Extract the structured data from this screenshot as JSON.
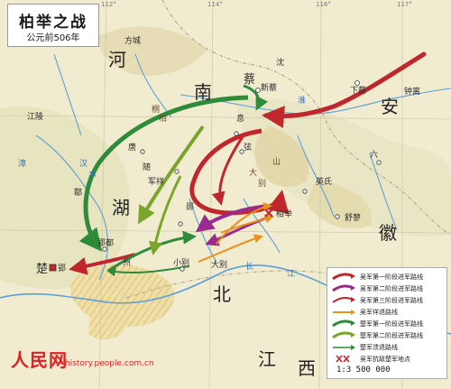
{
  "title": {
    "main": "柏举之战",
    "sub": "公元前506年"
  },
  "legend": {
    "items": [
      {
        "label": "吴军第一阶段进军路线",
        "color": "#c0272d"
      },
      {
        "label": "吴军第二阶段进军路线",
        "color": "#9a2a8c"
      },
      {
        "label": "吴军第三阶段进军路线",
        "color": "#c0272d"
      },
      {
        "label": "吴军佯退路线",
        "color": "#e8911e"
      },
      {
        "label": "楚军第一阶段进军路线",
        "color": "#2e8b3a"
      },
      {
        "label": "楚军第二阶段进军路线",
        "color": "#7aa52c"
      },
      {
        "label": "楚军溃退路线",
        "color": "#2e8b3a"
      },
      {
        "label": "吴军抗敌楚军地点",
        "color": "#c0272d"
      }
    ],
    "scale": "1:3 500 000"
  },
  "regions": {
    "nan": "南",
    "he": "河",
    "an": "安",
    "hu": "湖",
    "bei": "北",
    "hui": "徽",
    "jiang": "江",
    "xi": "西"
  },
  "cities": {
    "cai": "蔡",
    "xincai": "新蔡",
    "xiacai": "下蔡",
    "zhongli": "钟离",
    "xi": "息",
    "xian": "弦",
    "tang": "唐",
    "sui": "随",
    "yun": "郧",
    "junxiang": "军祥",
    "shen": "沈",
    "ruo": "鄀",
    "yingdu": "郢都",
    "ying": "郢",
    "boju": "柏举",
    "xiaobie": "小别",
    "dabie": "大别",
    "yingshi": "英氏",
    "shubiao": "舒蓼",
    "chu": "楚",
    "jiang_city": "江陵",
    "fangcheng": "方城",
    "liu": "六",
    "zhou": "州"
  },
  "rivers": {
    "han": "汉",
    "huai": "淮",
    "shui": "水",
    "chang": "长",
    "yu": "漳",
    "jiangriver": "江",
    "shan": "山"
  },
  "mountains": {
    "tongbai": "桐",
    "bai": "柏",
    "da": "大",
    "bie": "别"
  },
  "longitudes": [
    "112°",
    "114°",
    "116°",
    "117°"
  ],
  "watermark": {
    "main": "人民网",
    "sub": "history.people.com.cn"
  }
}
